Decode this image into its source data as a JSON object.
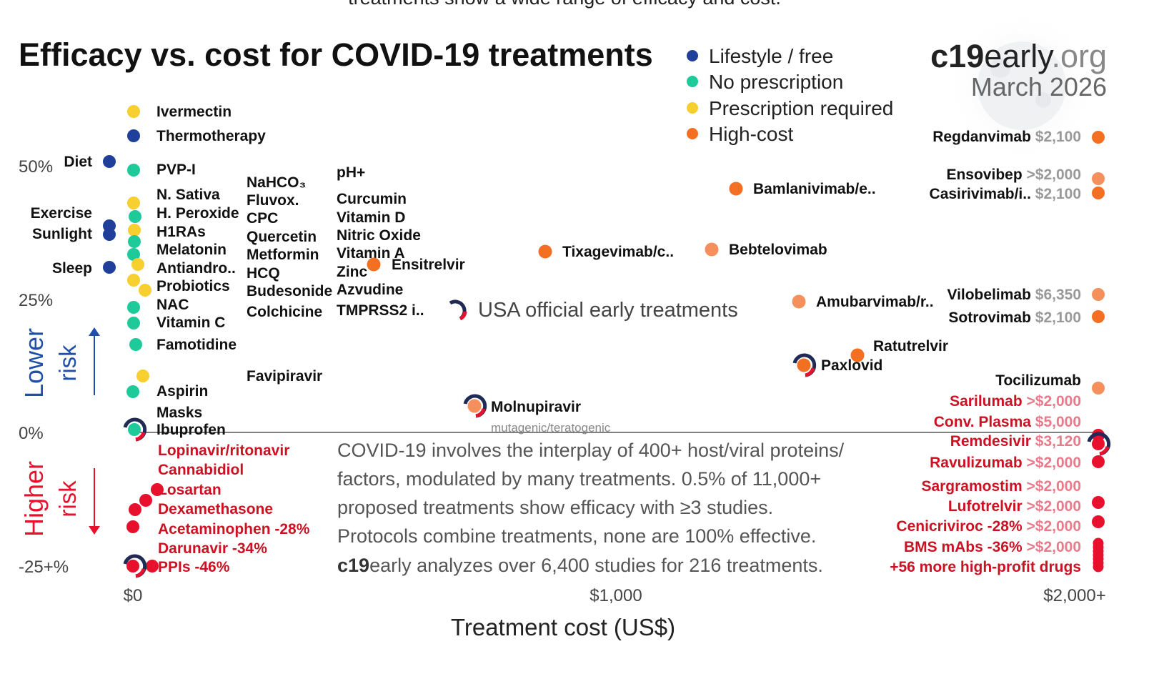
{
  "header_fragment": "treatments show a wide range of efficacy and cost.",
  "brand": {
    "c19": "c19",
    "early": "early",
    "org": ".org",
    "date": "March 2026"
  },
  "colors": {
    "lifestyle": "#1f3f9a",
    "no_prescription": "#1ec99a",
    "prescription": "#f7cf2e",
    "high_cost": "#f37022",
    "high_cost_light": "#f58f5c",
    "harm": "#e8112d",
    "harm_text": "#cc1122",
    "text": "#111111",
    "gray_text": "#666666",
    "lower_risk": "#1f4fa8",
    "higher_risk": "#e8112d"
  },
  "chart_data": {
    "type": "scatter",
    "title": "Efficacy vs. cost for COVID-19 treatments",
    "xlabel": "Treatment cost (US$)",
    "ylabel": "",
    "x_ticks": [
      "$0",
      "$1,000",
      "$2,000+"
    ],
    "y_ticks": [
      "50%",
      "25%",
      "0%",
      "-25+%"
    ],
    "xlim": [
      0,
      2000
    ],
    "ylim": [
      -25,
      50
    ],
    "grid": false,
    "legend_position": "top-right",
    "legend": [
      {
        "label": "Lifestyle / free",
        "key": "lifestyle"
      },
      {
        "label": "No prescription",
        "key": "no_prescription"
      },
      {
        "label": "Prescription required",
        "key": "prescription"
      },
      {
        "label": "High-cost",
        "key": "high_cost"
      }
    ],
    "risk_labels": {
      "lower": [
        "Lower",
        "risk"
      ],
      "higher": [
        "Higher",
        "risk"
      ]
    },
    "usa_label": "USA official early treatments",
    "note_lines": [
      "COVID-19 involves the interplay of 400+ host/viral proteins/",
      "factors, modulated by many treatments. 0.5% of 11,000+",
      "proposed treatments show efficacy with ≥3 studies.",
      "Protocols combine treatments, none are 100% effective."
    ],
    "note_last": {
      "bold": "c19",
      "rest": "early analyzes over 6,400 studies for 216 treatments."
    },
    "mutagenic_note": "mutagenic/teratogenic",
    "low_cost_groups": [
      {
        "bold": true,
        "items": [
          "Ivermectin",
          "Thermotherapy",
          "PVP-I",
          "N. Sativa",
          "H. Peroxide",
          "H1RAs",
          "Melatonin",
          "Antiandro..",
          "Probiotics",
          "NAC",
          "Vitamin C",
          "Famotidine",
          "Aspirin",
          "Masks",
          "Ibuprofen"
        ]
      },
      {
        "bold": true,
        "items": [
          "NaHCO₃",
          "Fluvox.",
          "CPC",
          "Quercetin",
          "Metformin",
          "HCQ",
          "Budesonide",
          "Colchicine",
          "Favipiravir"
        ]
      },
      {
        "bold": true,
        "items": [
          "pH+",
          "Curcumin",
          "Vitamin D",
          "Nitric Oxide",
          "Vitamin A",
          "Zinc",
          "Azvudine",
          "TMPRSS2 i.."
        ]
      }
    ],
    "lifestyle_items": [
      "Diet",
      "Exercise",
      "Sunlight",
      "Sleep"
    ],
    "harm_low_cost": [
      {
        "name": "Lopinavir/ritonavir",
        "effect": ""
      },
      {
        "name": "Cannabidiol",
        "effect": ""
      },
      {
        "name": "Losartan",
        "effect": ""
      },
      {
        "name": "Dexamethasone",
        "effect": ""
      },
      {
        "name": "Acetaminophen",
        "effect": "-28%"
      },
      {
        "name": "Darunavir",
        "effect": "-34%"
      },
      {
        "name": "PPIs",
        "effect": "-46%"
      }
    ],
    "mid_cost": [
      {
        "name": "Ensitrelvir",
        "cost": 500,
        "efficacy": 33,
        "category": "high_cost"
      },
      {
        "name": "Tixagevimab/c..",
        "cost": 860,
        "efficacy": 36,
        "category": "high_cost"
      },
      {
        "name": "Bebtelovimab",
        "cost": 1200,
        "efficacy": 36,
        "category": "high_cost_light"
      },
      {
        "name": "Bamlanivimab/e..",
        "cost": 1250,
        "efficacy": 47,
        "category": "high_cost"
      },
      {
        "name": "Amubarvimab/r..",
        "cost": 1380,
        "efficacy": 25,
        "category": "high_cost_light"
      },
      {
        "name": "Ratutrelvir",
        "cost": 1500,
        "efficacy": 14,
        "category": "high_cost"
      },
      {
        "name": "Paxlovid",
        "cost": 1390,
        "efficacy": 12,
        "category": "high_cost",
        "usa": true
      },
      {
        "name": "Molnupiravir",
        "cost": 710,
        "efficacy": 5,
        "category": "high_cost_light",
        "usa": true
      }
    ],
    "high_cost_positive": [
      {
        "name": "Regdanvimab",
        "price": "$2,100",
        "category": "high_cost"
      },
      {
        "name": "Ensovibep",
        "price": ">$2,000",
        "category": "high_cost_light"
      },
      {
        "name": "Casirivimab/i..",
        "price": "$2,100",
        "category": "high_cost"
      },
      {
        "name": "Vilobelimab",
        "price": "$6,350",
        "category": "high_cost_light"
      },
      {
        "name": "Sotrovimab",
        "price": "$2,100",
        "category": "high_cost"
      },
      {
        "name": "Tocilizumab",
        "price": "",
        "category": "high_cost_light"
      }
    ],
    "high_cost_negative": [
      {
        "name": "Sarilumab",
        "price": ">$2,000",
        "effect": ""
      },
      {
        "name": "Conv. Plasma",
        "price": "$5,000",
        "effect": ""
      },
      {
        "name": "Remdesivir",
        "price": "$3,120",
        "effect": ""
      },
      {
        "name": "Ravulizumab",
        "price": ">$2,000",
        "effect": ""
      },
      {
        "name": "Sargramostim",
        "price": ">$2,000",
        "effect": ""
      },
      {
        "name": "Lufotrelvir",
        "price": ">$2,000",
        "effect": ""
      },
      {
        "name": "Cenicriviroc",
        "price": ">$2,000",
        "effect": "-28%"
      },
      {
        "name": "BMS mAbs",
        "price": ">$2,000",
        "effect": "-36%"
      }
    ],
    "more_drugs": "+56 more high-profit drugs"
  }
}
